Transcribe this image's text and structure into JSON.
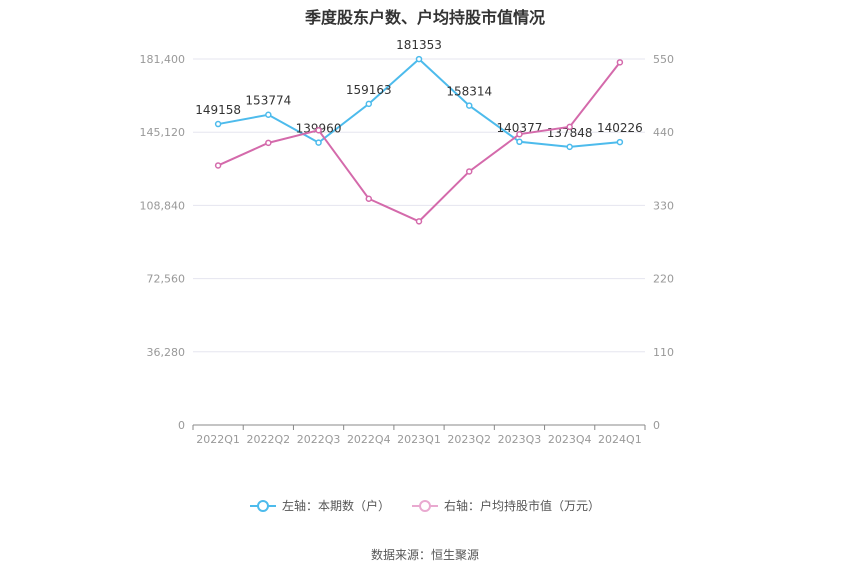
{
  "title": "季度股东户数、户均持股市值情况",
  "source": "数据来源：恒生聚源",
  "colors": {
    "left_series": "#4dbbec",
    "right_series": "#d46aab",
    "axis_text": "#999999",
    "grid": "#e5e5ef"
  },
  "chart_data": {
    "type": "line",
    "categories": [
      "2022Q1",
      "2022Q2",
      "2022Q3",
      "2022Q4",
      "2023Q1",
      "2023Q2",
      "2023Q3",
      "2023Q4",
      "2024Q1"
    ],
    "left_axis": {
      "ticks": [
        "0",
        "36,280",
        "72,560",
        "108,840",
        "145,120",
        "181,400"
      ],
      "ylim": [
        0,
        181400
      ]
    },
    "right_axis": {
      "ticks": [
        "0",
        "110",
        "220",
        "330",
        "440",
        "550"
      ],
      "ylim": [
        0,
        550
      ]
    },
    "grid": true,
    "legend_position": "bottom",
    "series": [
      {
        "name": "左轴：本期数（户）",
        "axis": "left",
        "values": [
          149158,
          153774,
          139960,
          159163,
          181353,
          158314,
          140377,
          137848,
          140226
        ],
        "labels": [
          "149158",
          "153774",
          "139960",
          "159163",
          "181353",
          "158314",
          "140377",
          "137848",
          "140226"
        ]
      },
      {
        "name": "右轴：户均持股市值（万元）",
        "axis": "right",
        "values": [
          390,
          424,
          443,
          340,
          306,
          381,
          437,
          448,
          545
        ]
      }
    ]
  }
}
